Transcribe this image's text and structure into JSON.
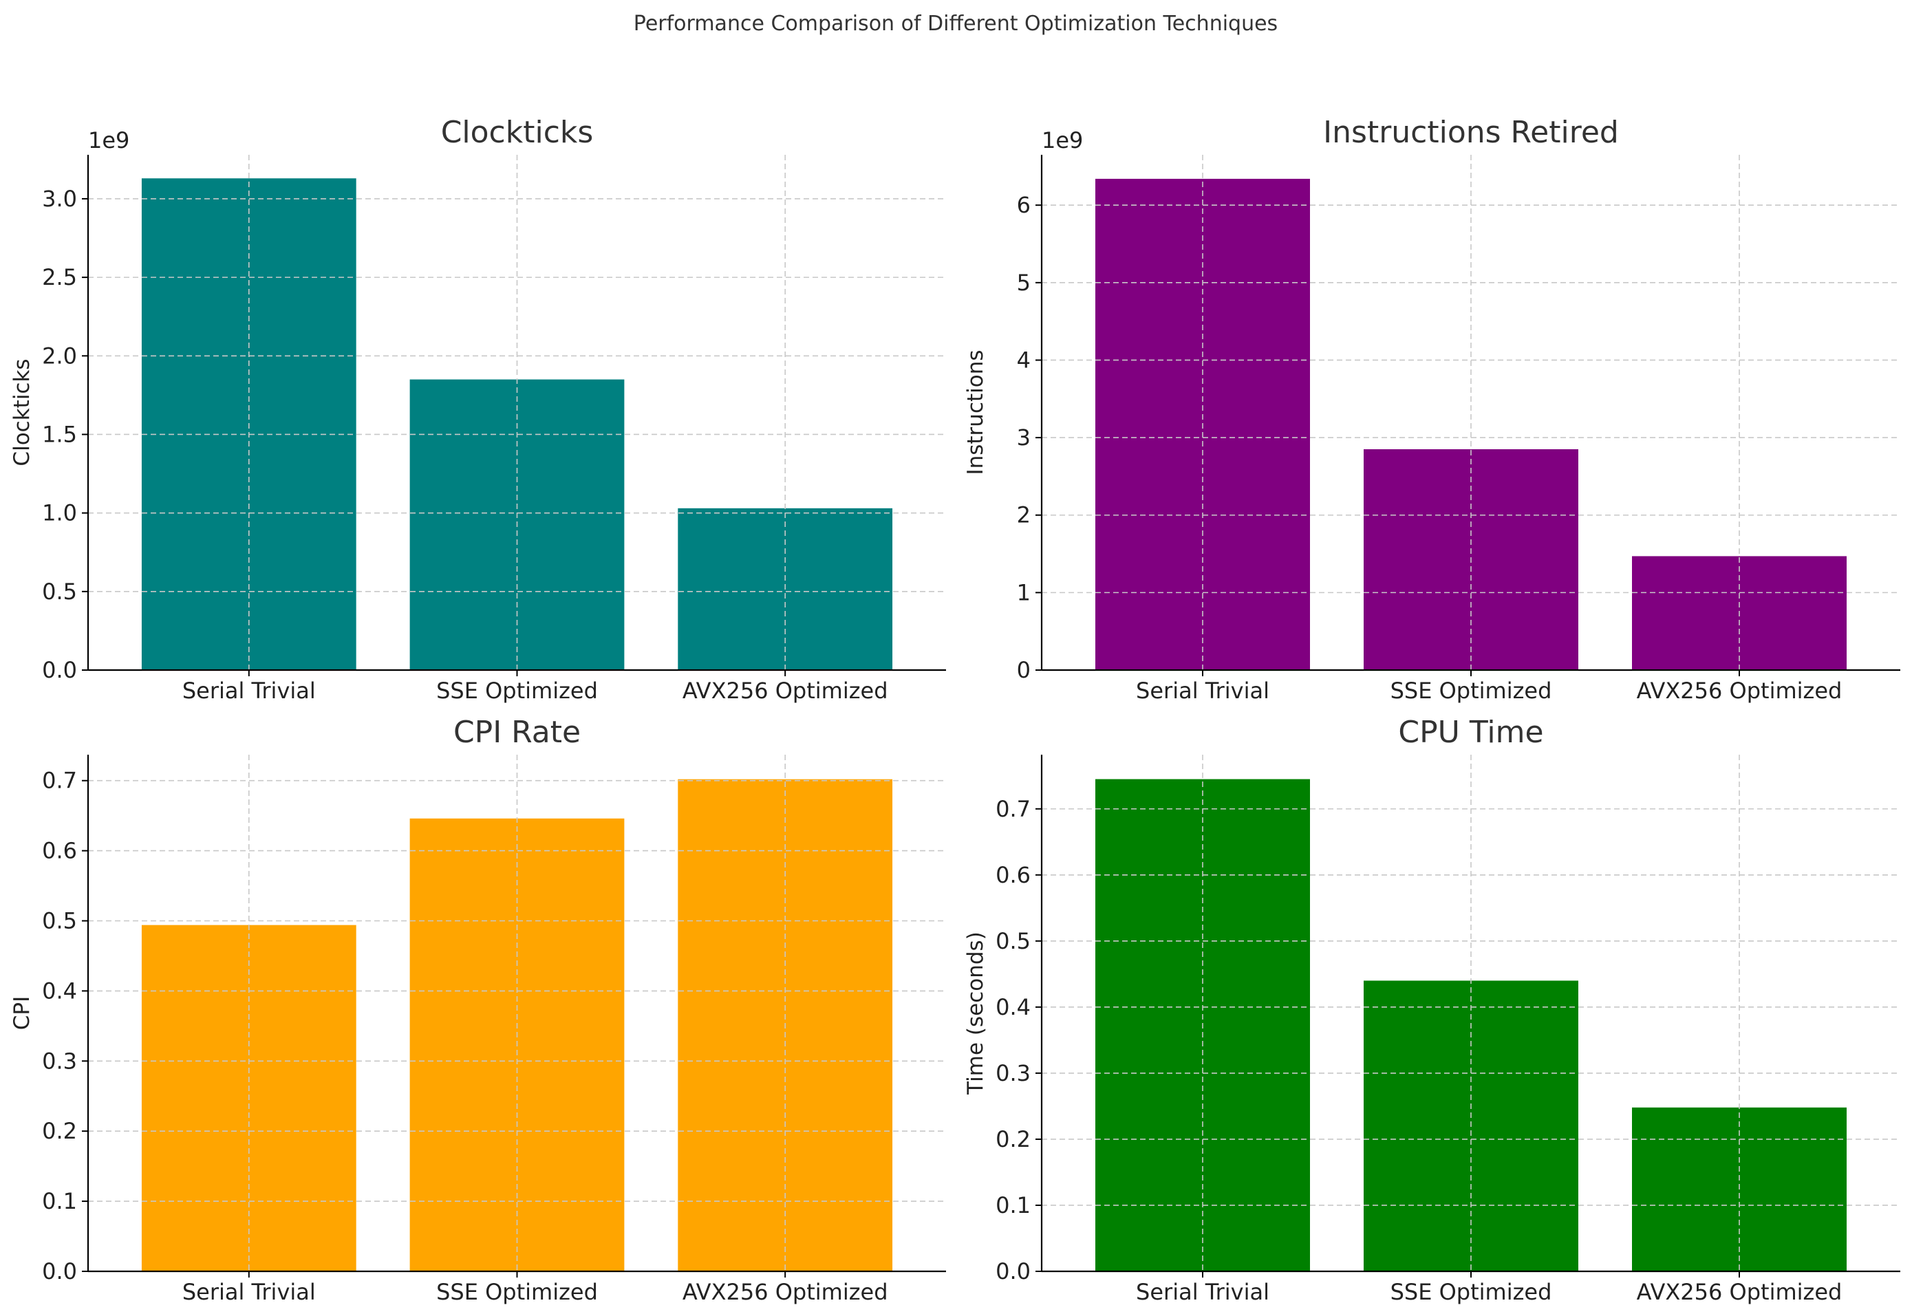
{
  "suptitle": "Performance Comparison of Different Optimization Techniques",
  "chart_data": [
    {
      "type": "bar",
      "title": "Clockticks",
      "ylabel": "Clockticks",
      "xlabel": "",
      "offset_label": "1e9",
      "scale": 1000000000,
      "categories": [
        "Serial Trivial",
        "SSE Optimized",
        "AVX256 Optimized"
      ],
      "values": [
        3130000000,
        1850000000,
        1030000000
      ],
      "ylim": [
        0,
        3.28
      ],
      "yticks": [
        0,
        0.5,
        1.0,
        1.5,
        2.0,
        2.5,
        3.0
      ],
      "ytick_labels": [
        "0.0",
        "0.5",
        "1.0",
        "1.5",
        "2.0",
        "2.5",
        "3.0"
      ],
      "color": "#008080",
      "grid": true
    },
    {
      "type": "bar",
      "title": "Instructions Retired",
      "ylabel": "Instructions",
      "xlabel": "",
      "offset_label": "1e9",
      "scale": 1000000000,
      "categories": [
        "Serial Trivial",
        "SSE Optimized",
        "AVX256 Optimized"
      ],
      "values": [
        6340000000,
        2850000000,
        1470000000
      ],
      "ylim": [
        0,
        6.65
      ],
      "yticks": [
        0,
        1,
        2,
        3,
        4,
        5,
        6
      ],
      "ytick_labels": [
        "0",
        "1",
        "2",
        "3",
        "4",
        "5",
        "6"
      ],
      "color": "#800080",
      "grid": true
    },
    {
      "type": "bar",
      "title": "CPI Rate",
      "ylabel": "CPI",
      "xlabel": "",
      "offset_label": "",
      "scale": 1,
      "categories": [
        "Serial Trivial",
        "SSE Optimized",
        "AVX256 Optimized"
      ],
      "values": [
        0.494,
        0.646,
        0.702
      ],
      "ylim": [
        0,
        0.737
      ],
      "yticks": [
        0,
        0.1,
        0.2,
        0.3,
        0.4,
        0.5,
        0.6,
        0.7
      ],
      "ytick_labels": [
        "0.0",
        "0.1",
        "0.2",
        "0.3",
        "0.4",
        "0.5",
        "0.6",
        "0.7"
      ],
      "color": "#FFA500",
      "grid": true
    },
    {
      "type": "bar",
      "title": "CPU Time",
      "ylabel": "Time (seconds)",
      "xlabel": "",
      "offset_label": "",
      "scale": 1,
      "categories": [
        "Serial Trivial",
        "SSE Optimized",
        "AVX256 Optimized"
      ],
      "values": [
        0.745,
        0.44,
        0.248
      ],
      "ylim": [
        0,
        0.782
      ],
      "yticks": [
        0,
        0.1,
        0.2,
        0.3,
        0.4,
        0.5,
        0.6,
        0.7
      ],
      "ytick_labels": [
        "0.0",
        "0.1",
        "0.2",
        "0.3",
        "0.4",
        "0.5",
        "0.6",
        "0.7"
      ],
      "color": "#008000",
      "grid": true
    }
  ]
}
